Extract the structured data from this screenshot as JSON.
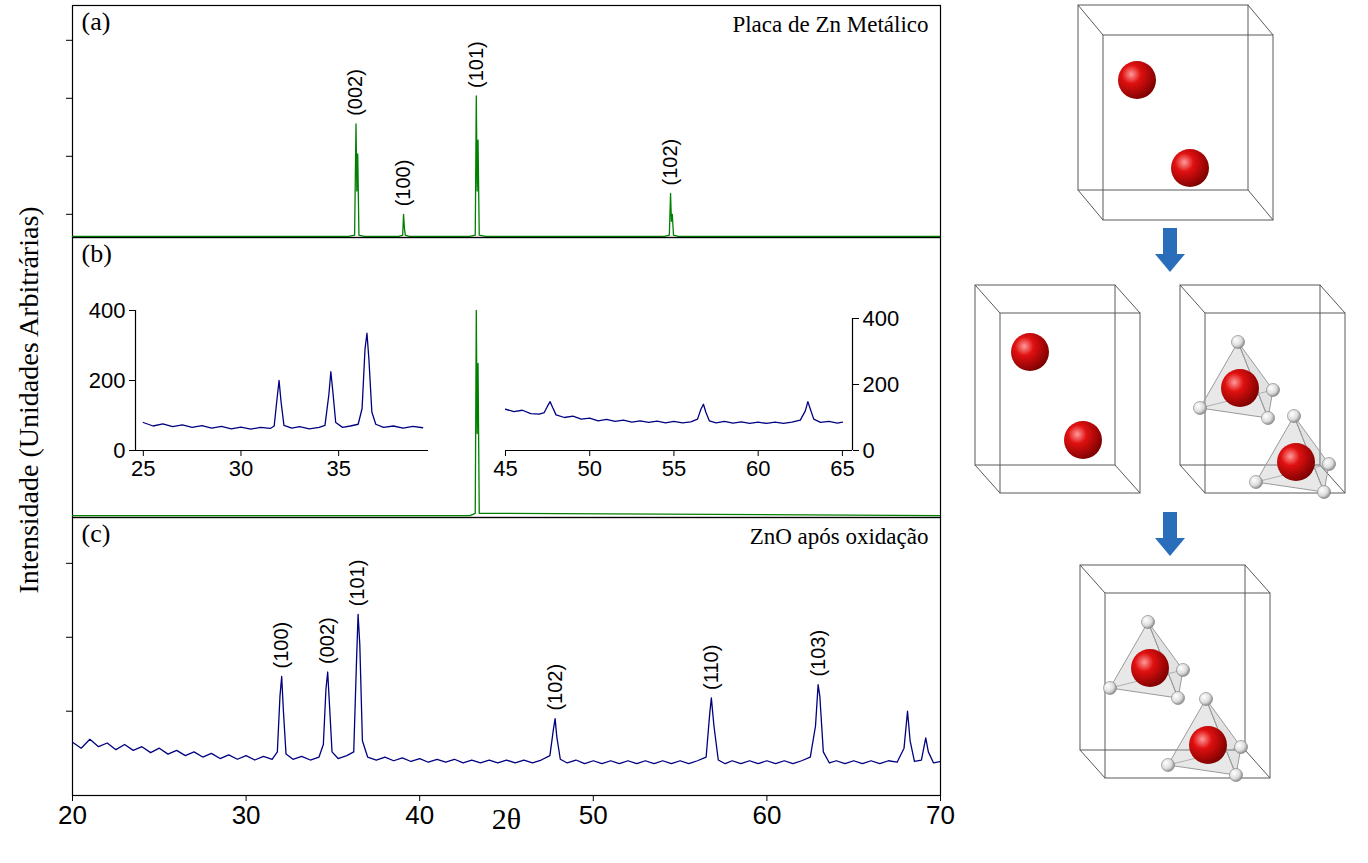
{
  "chart_data": [
    {
      "type": "line",
      "title": "Placa de Zn Metálico",
      "panel_label": "(a)",
      "x": [
        20,
        35.9,
        36.25,
        36.33,
        36.38,
        36.43,
        36.5,
        36.8,
        38.8,
        39.02,
        39.07,
        39.12,
        39.17,
        39.4,
        42.9,
        43.2,
        43.26,
        43.31,
        43.36,
        43.43,
        43.8,
        54.1,
        54.38,
        54.45,
        54.5,
        54.55,
        54.62,
        54.9,
        70
      ],
      "values": [
        0.5,
        0.5,
        1,
        49,
        20,
        36,
        1,
        0.5,
        0.5,
        1,
        10,
        4,
        1,
        0.5,
        0.5,
        1,
        61,
        20,
        42,
        1,
        0.5,
        0.5,
        1,
        19,
        7,
        10,
        1,
        0.5,
        0.5
      ],
      "color": "#008000",
      "xlim": [
        20,
        70
      ],
      "ylim": [
        0,
        100
      ],
      "yticks": [
        10,
        35,
        60,
        85
      ],
      "tick_labels": false,
      "annotations": [
        {
          "text": "(002)",
          "x": 36.33,
          "y": 49
        },
        {
          "text": "(100)",
          "x": 39.07,
          "y": 10
        },
        {
          "text": "(101)",
          "x": 43.26,
          "y": 61
        },
        {
          "text": "(102)",
          "x": 54.45,
          "y": 19
        }
      ]
    },
    {
      "type": "line",
      "panel_label": "(b)",
      "y_label": "Intensidade (Unidades Arbitrárias)",
      "x": [
        20,
        42.9,
        43.2,
        43.26,
        43.31,
        43.36,
        43.43,
        70
      ],
      "values": [
        0.7,
        0.7,
        1.5,
        74,
        30,
        55,
        1.5,
        0.7
      ],
      "color": "#008000",
      "xlim": [
        20,
        70
      ],
      "ylim": [
        0,
        100
      ],
      "tick_labels": false
    },
    {
      "type": "line",
      "x": [
        25,
        25.5,
        26,
        26.5,
        27,
        27.5,
        28,
        28.5,
        29,
        29.5,
        30,
        30.5,
        31,
        31.5,
        31.7,
        31.85,
        31.95,
        32.05,
        32.2,
        32.6,
        33,
        33.5,
        34,
        34.3,
        34.5,
        34.6,
        34.7,
        34.85,
        35.2,
        35.6,
        36,
        36.2,
        36.35,
        36.45,
        36.55,
        36.7,
        36.9,
        37.3,
        37.8,
        38.3,
        38.8,
        39.3
      ],
      "values": [
        80,
        70,
        76,
        68,
        73,
        66,
        71,
        64,
        69,
        62,
        67,
        61,
        66,
        63,
        70,
        150,
        200,
        140,
        72,
        64,
        68,
        62,
        66,
        72,
        160,
        225,
        170,
        80,
        66,
        70,
        75,
        120,
        290,
        335,
        260,
        110,
        75,
        66,
        70,
        64,
        69,
        65
      ],
      "color": "#000080",
      "xlim": [
        24.6,
        39.6
      ],
      "ylim": [
        0,
        400
      ],
      "xticks": [
        25,
        30,
        35
      ],
      "yticks": [
        0,
        200,
        400
      ],
      "tick_labels": true
    },
    {
      "type": "line",
      "x": [
        45,
        45.5,
        46,
        46.5,
        47,
        47.3,
        47.5,
        47.65,
        47.8,
        48,
        48.5,
        49,
        49.5,
        50,
        50.5,
        51,
        51.5,
        52,
        52.5,
        53,
        53.5,
        54,
        54.5,
        55,
        55.5,
        56,
        56.4,
        56.6,
        56.75,
        56.9,
        57.1,
        57.5,
        58,
        58.5,
        59,
        59.5,
        60,
        60.5,
        61,
        61.5,
        62,
        62.5,
        62.8,
        62.95,
        63.1,
        63.3,
        63.7,
        64.2,
        64.7,
        65
      ],
      "values": [
        125,
        118,
        122,
        112,
        110,
        115,
        135,
        148,
        130,
        108,
        100,
        104,
        95,
        98,
        90,
        94,
        88,
        92,
        86,
        90,
        85,
        89,
        84,
        88,
        84,
        87,
        95,
        125,
        140,
        115,
        90,
        84,
        88,
        83,
        87,
        82,
        86,
        82,
        86,
        82,
        86,
        92,
        120,
        148,
        125,
        95,
        85,
        88,
        83,
        86
      ],
      "color": "#000080",
      "xlim": [
        45,
        65.6
      ],
      "y2lim": [
        0,
        400
      ],
      "xticks": [
        45,
        50,
        55,
        60,
        65
      ],
      "y2ticks": [
        0,
        200,
        400
      ],
      "tick_labels": true
    },
    {
      "type": "line",
      "title": "ZnO após oxidação",
      "panel_label": "(c)",
      "x_label": "2θ",
      "x": [
        20,
        20.5,
        21,
        21.5,
        22,
        22.5,
        23,
        23.5,
        24,
        24.5,
        25,
        25.5,
        26,
        26.5,
        27,
        27.5,
        28,
        28.5,
        29,
        29.5,
        30,
        30.5,
        31,
        31.5,
        31.8,
        31.95,
        32.05,
        32.15,
        32.3,
        32.7,
        33.2,
        33.7,
        34.2,
        34.45,
        34.6,
        34.7,
        34.8,
        34.95,
        35.3,
        35.8,
        36.2,
        36.35,
        36.45,
        36.55,
        36.7,
        37,
        37.5,
        38,
        38.5,
        39,
        39.5,
        40,
        40.5,
        41,
        41.5,
        42,
        42.5,
        43,
        43.5,
        44,
        44.5,
        45,
        45.5,
        46,
        46.5,
        47,
        47.5,
        47.7,
        47.8,
        47.9,
        48.1,
        48.5,
        49,
        49.5,
        50,
        50.5,
        51,
        51.5,
        52,
        52.5,
        53,
        53.5,
        54,
        54.5,
        55,
        55.5,
        56,
        56.5,
        56.7,
        56.8,
        56.95,
        57.2,
        57.6,
        58,
        58.5,
        59,
        59.5,
        60,
        60.5,
        61,
        61.5,
        62,
        62.5,
        62.8,
        62.95,
        63.05,
        63.25,
        63.6,
        64,
        64.5,
        65,
        65.5,
        66,
        66.5,
        67,
        67.5,
        67.9,
        68.1,
        68.25,
        68.5,
        68.9,
        69.15,
        69.3,
        69.6,
        70
      ],
      "values": [
        58,
        50,
        62,
        52,
        57,
        48,
        55,
        47,
        52,
        44,
        50,
        42,
        47,
        40,
        45,
        38,
        43,
        36,
        41,
        35,
        40,
        34,
        39,
        35,
        45,
        120,
        147,
        100,
        42,
        35,
        39,
        34,
        38,
        55,
        130,
        153,
        110,
        45,
        36,
        40,
        45,
        160,
        231,
        190,
        60,
        38,
        34,
        38,
        33,
        37,
        32,
        36,
        31,
        35,
        31,
        35,
        30,
        34,
        30,
        34,
        30,
        34,
        30,
        34,
        30,
        34,
        40,
        75,
        90,
        65,
        35,
        30,
        34,
        29,
        33,
        29,
        33,
        29,
        33,
        29,
        33,
        29,
        33,
        29,
        33,
        29,
        33,
        38,
        95,
        118,
        80,
        34,
        29,
        33,
        29,
        33,
        29,
        33,
        29,
        33,
        29,
        33,
        38,
        80,
        136,
        120,
        45,
        30,
        33,
        29,
        33,
        29,
        33,
        29,
        33,
        31,
        50,
        100,
        60,
        32,
        34,
        64,
        45,
        30,
        32
      ],
      "color": "#000080",
      "xlim": [
        20,
        70
      ],
      "ylim": [
        -14,
        362
      ],
      "xticks": [
        20,
        30,
        40,
        50,
        60,
        70
      ],
      "yticks": [
        100,
        200,
        300
      ],
      "tick_labels": "x",
      "annotations": [
        {
          "text": "(100)",
          "x": 32.05,
          "y": 147
        },
        {
          "text": "(002)",
          "x": 34.7,
          "y": 153
        },
        {
          "text": "(101)",
          "x": 36.45,
          "y": 231
        },
        {
          "text": "(102)",
          "x": 47.8,
          "y": 90
        },
        {
          "text": "(110)",
          "x": 56.8,
          "y": 118
        },
        {
          "text": "(103)",
          "x": 62.95,
          "y": 136
        }
      ]
    }
  ]
}
